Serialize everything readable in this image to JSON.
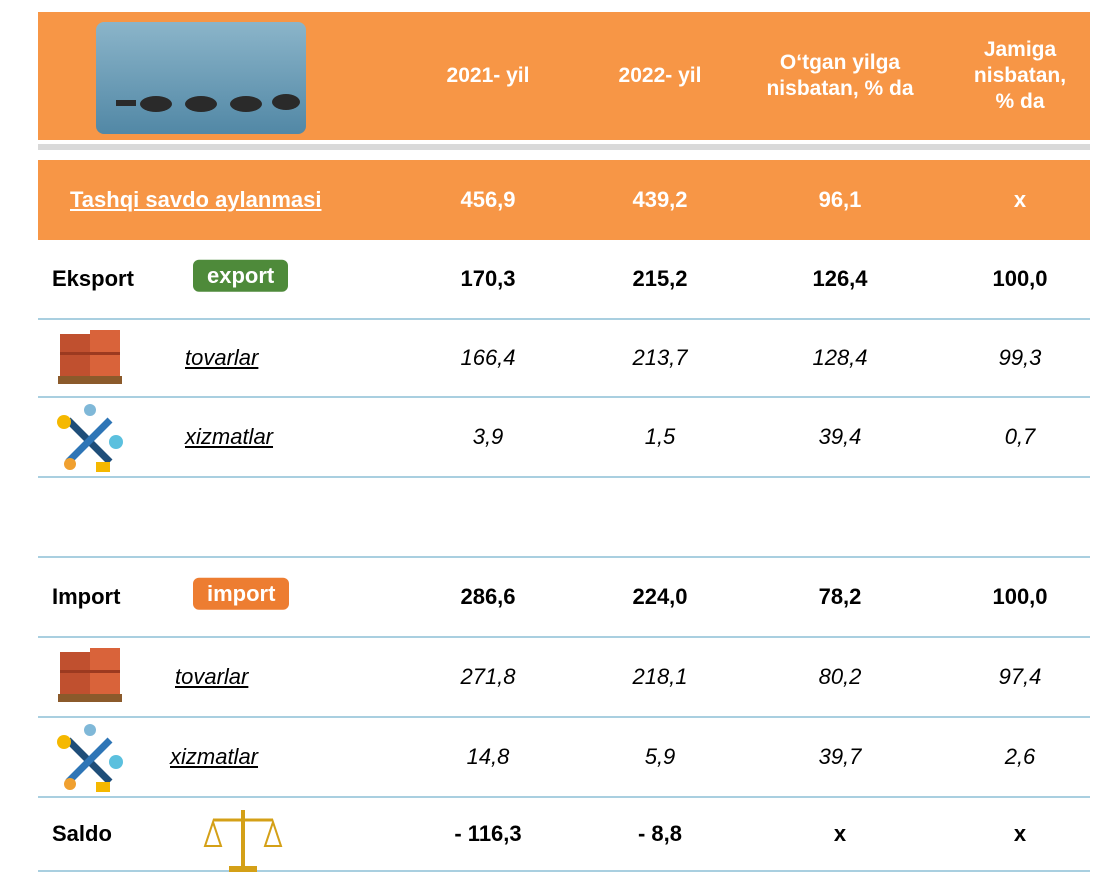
{
  "header": {
    "columns": [
      [
        "2021- yil"
      ],
      [
        "2022- yil"
      ],
      [
        "O‘tgan yilga",
        "nisbatan, % da"
      ],
      [
        "Jamiga",
        "nisbatan,",
        "% da"
      ]
    ]
  },
  "total": {
    "label": "Tashqi savdo aylanmasi",
    "cells": [
      "456,9",
      "439,2",
      "96,1",
      "x"
    ]
  },
  "export": {
    "label": "Eksport",
    "badge": "export",
    "cells": [
      "170,3",
      "215,2",
      "126,4",
      "100,0"
    ],
    "goods": {
      "label": "tovarlar",
      "cells": [
        "166,4",
        "213,7",
        "128,4",
        "99,3"
      ]
    },
    "services": {
      "label": "xizmatlar",
      "cells": [
        "3,9",
        "1,5",
        "39,4",
        "0,7"
      ]
    }
  },
  "import": {
    "label": "Import",
    "badge": "import",
    "cells": [
      "286,6",
      "224,0",
      "78,2",
      "100,0"
    ],
    "goods": {
      "label": "tovarlar",
      "cells": [
        "271,8",
        "218,1",
        "80,2",
        "97,4"
      ]
    },
    "services": {
      "label": "xizmatlar",
      "cells": [
        "14,8",
        "5,9",
        "39,7",
        "2,6"
      ]
    }
  },
  "saldo": {
    "label": "Saldo",
    "cells": [
      "- 116,3",
      "- 8,8",
      "x",
      "x"
    ]
  }
}
